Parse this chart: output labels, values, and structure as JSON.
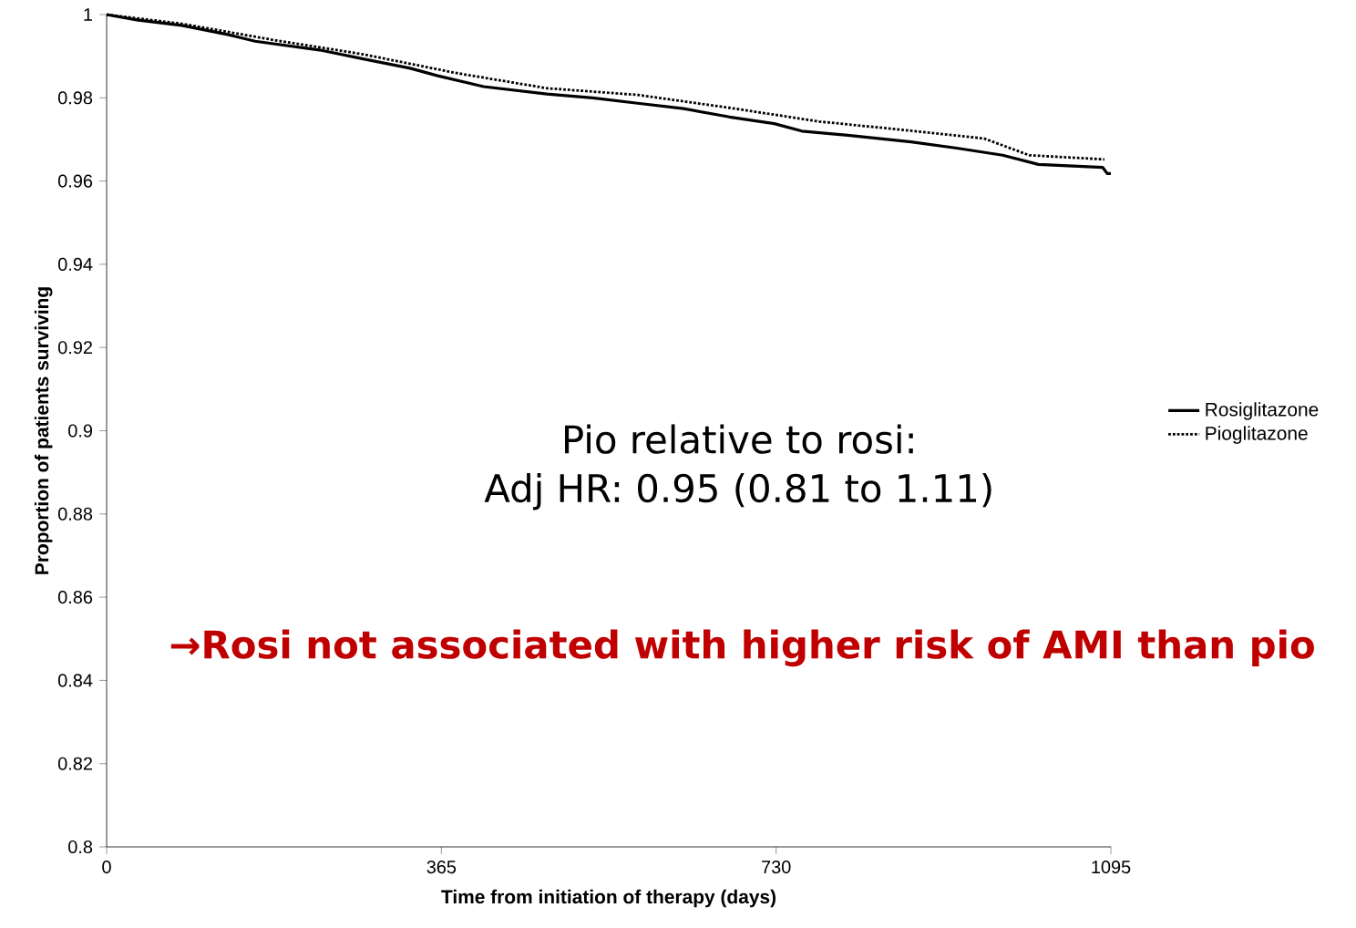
{
  "chart_data": {
    "type": "line",
    "xlabel": "Time from initiation of therapy (days)",
    "ylabel": "Proportion of patients surviving",
    "xlim": [
      0,
      1095
    ],
    "xticks": [
      0,
      365,
      730,
      1095
    ],
    "ylim": [
      0.8,
      1
    ],
    "yticks": [
      0.8,
      0.82,
      0.84,
      0.86,
      0.88,
      0.9,
      0.92,
      0.94,
      0.96,
      0.98,
      1
    ],
    "legend": "right",
    "marker": "none",
    "grid": false,
    "annotations": [
      "Pio relative to rosi:",
      "Adj HR: 0.95 (0.81 to 1.11)",
      "→Rosi not associated with higher risk of AMI than pio"
    ],
    "series": [
      {
        "name": "Rosiglitazone",
        "color": "#000000",
        "line_style": "solid",
        "x": [
          0,
          33,
          82,
          132,
          162,
          232,
          281,
          331,
          361,
          411,
          480,
          530,
          579,
          629,
          679,
          728,
          758,
          808,
          877,
          927,
          977,
          1016,
          1086,
          1091,
          1095
        ],
        "values": [
          1.0,
          0.9987,
          0.9974,
          0.9952,
          0.9936,
          0.9915,
          0.9893,
          0.9871,
          0.9853,
          0.9827,
          0.9809,
          0.98,
          0.9787,
          0.9774,
          0.9754,
          0.9738,
          0.972,
          0.971,
          0.9694,
          0.9679,
          0.9662,
          0.964,
          0.9633,
          0.9618,
          0.9618
        ]
      },
      {
        "name": "Pioglitazone",
        "color": "#000000",
        "line_style": "dotted",
        "x": [
          0,
          82,
          182,
          281,
          380,
          480,
          579,
          679,
          777,
          877,
          957,
          1006,
          1088
        ],
        "values": [
          1.0,
          0.9978,
          0.9939,
          0.9904,
          0.986,
          0.9823,
          0.9807,
          0.9776,
          0.9743,
          0.9721,
          0.9702,
          0.9662,
          0.9652
        ]
      }
    ]
  }
}
